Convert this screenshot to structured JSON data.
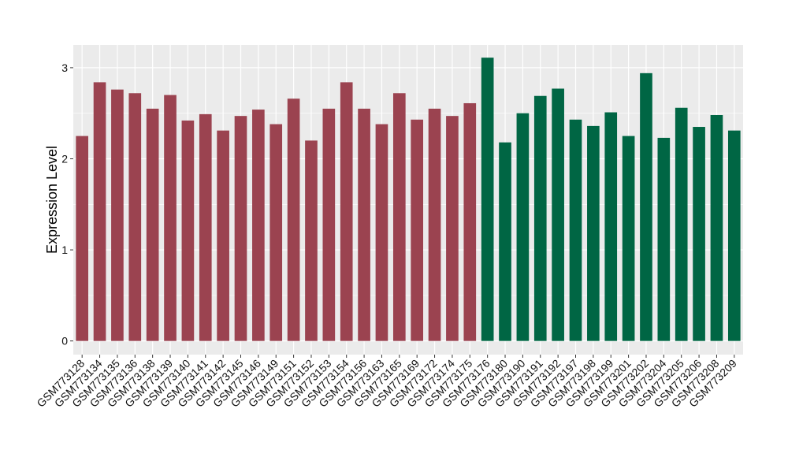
{
  "chart_data": {
    "type": "bar",
    "title": "",
    "xlabel": "",
    "ylabel": "Expression Level",
    "ylim": [
      -0.15,
      3.25
    ],
    "yticks": [
      0,
      1,
      2,
      3
    ],
    "grid": true,
    "legend": "none",
    "colors": {
      "group_a": "#9b4350",
      "group_b": "#006644",
      "panel": "#ebebeb",
      "gridline": "#ffffff"
    },
    "categories": [
      "GSM773128",
      "GSM773134",
      "GSM773135",
      "GSM773136",
      "GSM773138",
      "GSM773139",
      "GSM773140",
      "GSM773141",
      "GSM773142",
      "GSM773145",
      "GSM773146",
      "GSM773149",
      "GSM773151",
      "GSM773152",
      "GSM773153",
      "GSM773154",
      "GSM773156",
      "GSM773163",
      "GSM773165",
      "GSM773169",
      "GSM773172",
      "GSM773174",
      "GSM773175",
      "GSM773176",
      "GSM773180",
      "GSM773190",
      "GSM773191",
      "GSM773192",
      "GSM773197",
      "GSM773198",
      "GSM773199",
      "GSM773201",
      "GSM773202",
      "GSM773204",
      "GSM773205",
      "GSM773206",
      "GSM773208",
      "GSM773209"
    ],
    "values": [
      2.25,
      2.84,
      2.76,
      2.72,
      2.55,
      2.7,
      2.42,
      2.49,
      2.31,
      2.47,
      2.54,
      2.38,
      2.66,
      2.2,
      2.55,
      2.84,
      2.55,
      2.38,
      2.72,
      2.43,
      2.55,
      2.47,
      2.61,
      3.11,
      2.18,
      2.5,
      2.69,
      2.77,
      2.43,
      2.36,
      2.51,
      2.25,
      2.94,
      2.23,
      2.56,
      2.35,
      2.48,
      2.31
    ],
    "groups": [
      "a",
      "a",
      "a",
      "a",
      "a",
      "a",
      "a",
      "a",
      "a",
      "a",
      "a",
      "a",
      "a",
      "a",
      "a",
      "a",
      "a",
      "a",
      "a",
      "a",
      "a",
      "a",
      "a",
      "b",
      "b",
      "b",
      "b",
      "b",
      "b",
      "b",
      "b",
      "b",
      "b",
      "b",
      "b",
      "b",
      "b",
      "b"
    ]
  }
}
